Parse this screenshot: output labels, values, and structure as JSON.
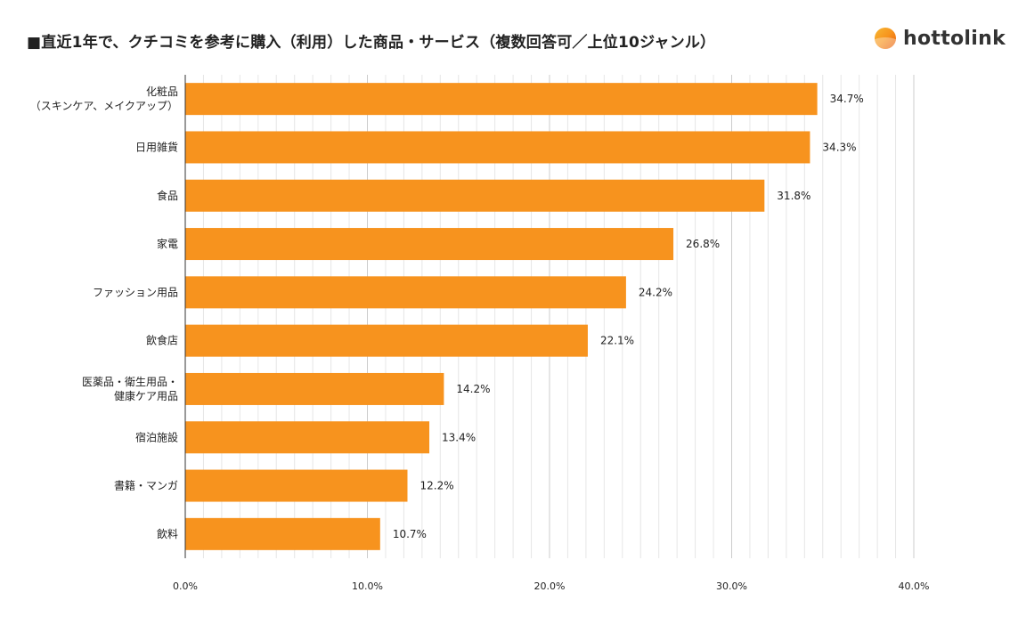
{
  "header": {
    "title": "■直近1年で、クチコミを参考に購入（利用）した商品・サービス（複数回答可／上位10ジャンル）",
    "logo_text": "hottolink",
    "logo_icon": "sunrise-circle-icon"
  },
  "chart_data": {
    "type": "bar",
    "orientation": "horizontal",
    "categories": [
      [
        "化粧品",
        "（スキンケア、メイクアップ）"
      ],
      [
        "日用雑貨"
      ],
      [
        "食品"
      ],
      [
        "家電"
      ],
      [
        "ファッション用品"
      ],
      [
        "飲食店"
      ],
      [
        "医薬品・衛生用品・",
        "健康ケア用品"
      ],
      [
        "宿泊施設"
      ],
      [
        "書籍・マンガ"
      ],
      [
        "飲料"
      ]
    ],
    "values": [
      34.7,
      34.3,
      31.8,
      26.8,
      24.2,
      22.1,
      14.2,
      13.4,
      12.2,
      10.7
    ],
    "value_labels": [
      "34.7%",
      "34.3%",
      "31.8%",
      "26.8%",
      "24.2%",
      "22.1%",
      "14.2%",
      "13.4%",
      "12.2%",
      "10.7%"
    ],
    "xlim": [
      0,
      40
    ],
    "x_ticks": [
      0,
      10,
      20,
      30,
      40
    ],
    "x_tick_labels": [
      "0.0%",
      "10.0%",
      "20.0%",
      "30.0%",
      "40.0%"
    ],
    "minor_grid_step": 1,
    "grid": true,
    "bar_color": "#f7931e",
    "major_grid_color": "#cccccc",
    "minor_grid_color": "#e6e6e6"
  }
}
